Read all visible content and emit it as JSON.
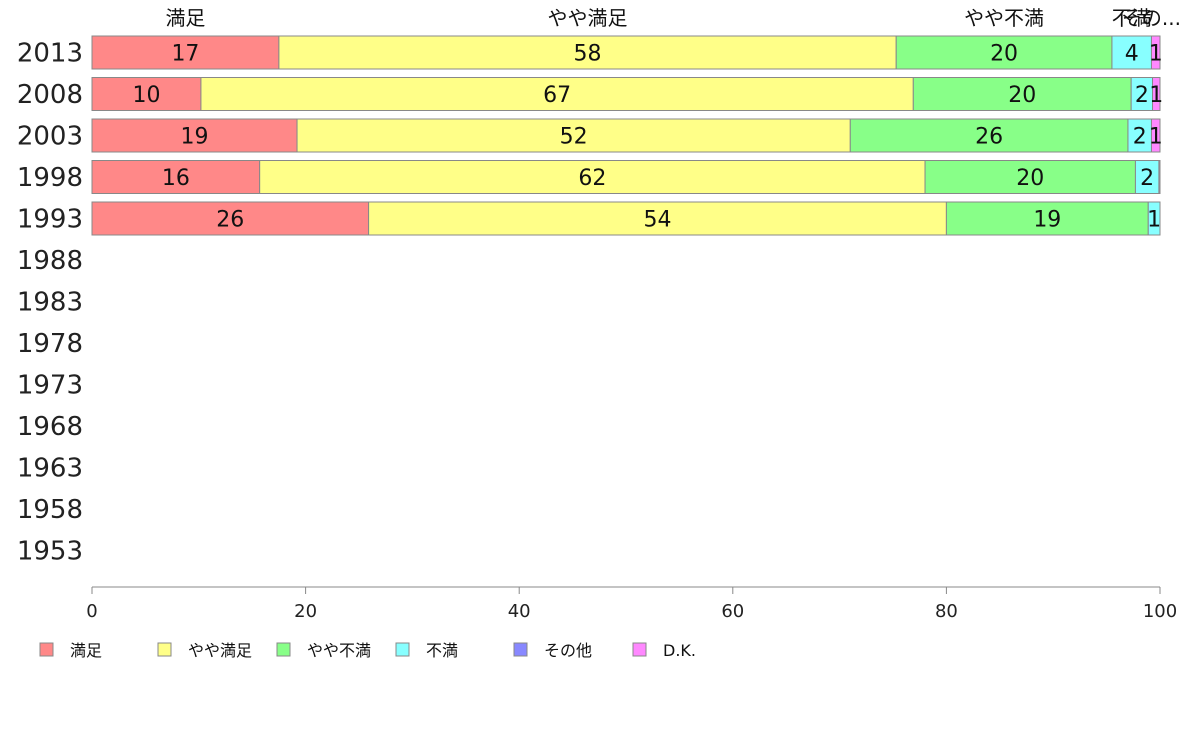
{
  "chart_data": {
    "type": "bar",
    "orientation": "horizontal",
    "stacked": true,
    "categories": [
      "2013",
      "2008",
      "2003",
      "1998",
      "1993",
      "1988",
      "1983",
      "1978",
      "1973",
      "1968",
      "1963",
      "1958",
      "1953"
    ],
    "series": [
      {
        "name": "満足",
        "color": "#ff8888",
        "values": [
          17.5,
          10.2,
          19.2,
          15.7,
          25.9,
          null,
          null,
          null,
          null,
          null,
          null,
          null,
          null
        ],
        "labels": [
          "17",
          "10",
          "19",
          "16",
          "26",
          "",
          "",
          "",
          "",
          "",
          "",
          "",
          ""
        ]
      },
      {
        "name": "やや満足",
        "color": "#ffff88",
        "values": [
          57.8,
          66.7,
          51.8,
          62.3,
          54.1,
          null,
          null,
          null,
          null,
          null,
          null,
          null,
          null
        ],
        "labels": [
          "58",
          "67",
          "52",
          "62",
          "54",
          "",
          "",
          "",
          "",
          "",
          "",
          "",
          ""
        ]
      },
      {
        "name": "やや不満",
        "color": "#88ff88",
        "values": [
          20.2,
          20.4,
          26.0,
          19.7,
          18.9,
          null,
          null,
          null,
          null,
          null,
          null,
          null,
          null
        ],
        "labels": [
          "20",
          "20",
          "26",
          "20",
          "19",
          "",
          "",
          "",
          "",
          "",
          "",
          "",
          ""
        ]
      },
      {
        "name": "不満",
        "color": "#88ffff",
        "values": [
          3.7,
          2.0,
          2.2,
          2.2,
          1.1,
          null,
          null,
          null,
          null,
          null,
          null,
          null,
          null
        ],
        "labels": [
          "4",
          "2",
          "2",
          "2",
          "1",
          "",
          "",
          "",
          "",
          "",
          "",
          "",
          ""
        ]
      },
      {
        "name": "その他",
        "color": "#8888ff",
        "values": [
          0.0,
          0.0,
          0.0,
          0.0,
          0.0,
          null,
          null,
          null,
          null,
          null,
          null,
          null,
          null
        ],
        "labels": [
          "",
          "",
          "",
          "",
          "",
          "",
          "",
          "",
          "",
          "",
          "",
          "",
          ""
        ]
      },
      {
        "name": "D.K.",
        "color": "#ff88ff",
        "values": [
          0.8,
          0.7,
          0.8,
          0.1,
          0.0,
          null,
          null,
          null,
          null,
          null,
          null,
          null,
          null
        ],
        "labels": [
          "1",
          "1",
          "1",
          "",
          "",
          "",
          "",
          "",
          "",
          "",
          "",
          "",
          ""
        ]
      }
    ],
    "top_labels": [
      "満足",
      "やや満足",
      "やや不満",
      "不満",
      "その..."
    ],
    "xlim": [
      0,
      100
    ],
    "xticks": [
      0,
      20,
      40,
      60,
      80,
      100
    ],
    "grid": false,
    "legend_position": "bottom-left"
  }
}
